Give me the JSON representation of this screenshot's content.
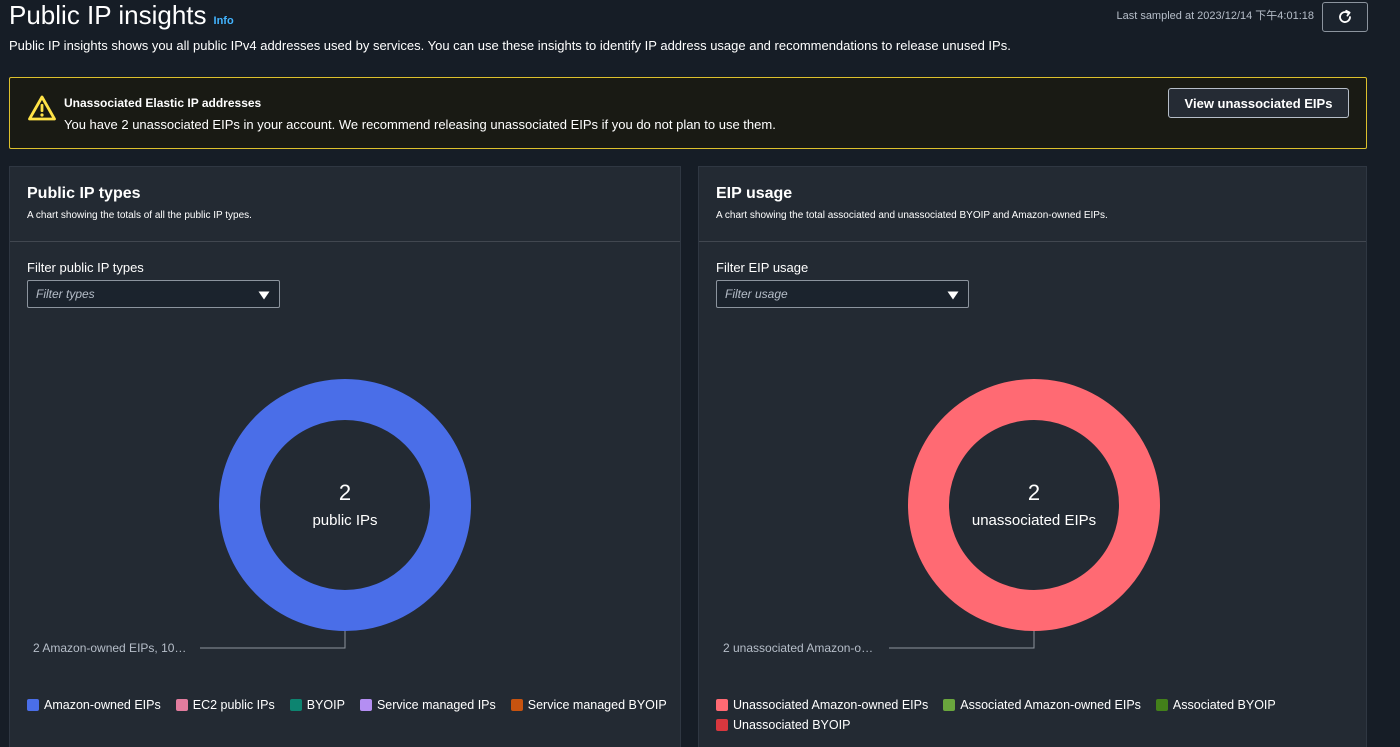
{
  "header": {
    "title": "Public IP insights",
    "info_label": "Info",
    "description": "Public IP insights shows you all public IPv4 addresses used by services. You can use these insights to identify IP address usage and recommendations to release unused IPs.",
    "last_sampled": "Last sampled at 2023/12/14 下午4:01:18",
    "refresh_icon": "refresh-icon"
  },
  "alert": {
    "icon": "warning-icon",
    "title": "Unassociated Elastic IP addresses",
    "text": "You have 2 unassociated EIPs in your account. We recommend releasing unassociated EIPs if you do not plan to use them.",
    "button_label": "View unassociated EIPs",
    "border_color": "#dcc02c"
  },
  "panels": [
    {
      "title": "Public IP types",
      "subtitle": "A chart showing the totals of all the public IP types.",
      "filter_label": "Filter public IP types",
      "filter_placeholder": "Filter types",
      "center_value": "2",
      "center_label": "public IPs",
      "callout": "2 Amazon-owned EIPs, 10…",
      "legend": [
        {
          "label": "Amazon-owned EIPs",
          "color": "#4a6ee8"
        },
        {
          "label": "EC2 public IPs",
          "color": "#e27c9e"
        },
        {
          "label": "BYOIP",
          "color": "#0d8470"
        },
        {
          "label": "Service managed IPs",
          "color": "#b48ef2"
        },
        {
          "label": "Service managed BYOIP",
          "color": "#c7530f"
        }
      ]
    },
    {
      "title": "EIP usage",
      "subtitle": "A chart showing the total associated and unassociated BYOIP and Amazon-owned EIPs.",
      "filter_label": "Filter EIP usage",
      "filter_placeholder": "Filter usage",
      "center_value": "2",
      "center_label": "unassociated EIPs",
      "callout": "2 unassociated Amazon-o…",
      "legend": [
        {
          "label": "Unassociated Amazon-owned EIPs",
          "color": "#ff6a73"
        },
        {
          "label": "Associated Amazon-owned EIPs",
          "color": "#6aa63d"
        },
        {
          "label": "Associated BYOIP",
          "color": "#43801a"
        },
        {
          "label": "Unassociated BYOIP",
          "color": "#d8373e"
        }
      ]
    }
  ],
  "chart_data": [
    {
      "type": "pie",
      "categories": [
        "Amazon-owned EIPs",
        "EC2 public IPs",
        "BYOIP",
        "Service managed IPs",
        "Service managed BYOIP"
      ],
      "values": [
        2,
        0,
        0,
        0,
        0
      ],
      "colors": [
        "#4a6ee8",
        "#e27c9e",
        "#0d8470",
        "#b48ef2",
        "#c7530f"
      ],
      "legend": "bottom"
    },
    {
      "type": "pie",
      "categories": [
        "Unassociated Amazon-owned EIPs",
        "Associated Amazon-owned EIPs",
        "Associated BYOIP",
        "Unassociated BYOIP"
      ],
      "values": [
        2,
        0,
        0,
        0
      ],
      "colors": [
        "#ff6a73",
        "#6aa63d",
        "#43801a",
        "#d8373e"
      ],
      "legend": "bottom"
    }
  ]
}
